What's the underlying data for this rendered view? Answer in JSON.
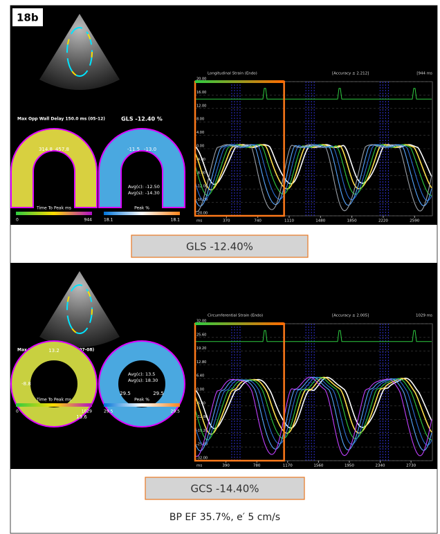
{
  "figure_label": "18b",
  "panels": [
    {
      "left_title": "Max Opp Wall Delay 150.0 ms (05-12)",
      "right_title": "GLS -12.40 %",
      "left_values": [
        "314.8",
        "457.8"
      ],
      "right_values": [
        "-11.5",
        "-13.0"
      ],
      "averages": [
        "Avg(c): -12.50",
        "Avg(s): -14.30"
      ],
      "left_scale": {
        "title": "Time To Peak ms",
        "min": "0",
        "max": "944"
      },
      "right_scale": {
        "title": "Peak %",
        "min": "18.1",
        "max": "18.1"
      },
      "graph": {
        "title": "Longitudinal Strain (Endo)",
        "accuracy": "[Accuracy ± 2.212]",
        "duration": "[944 ms",
        "x_unit": "ms",
        "ylim": [
          -20,
          20
        ],
        "xlim": [
          0,
          2800
        ],
        "yticks": [
          {
            "value": 20,
            "label": "20.00"
          },
          {
            "value": 16,
            "label": "16.00"
          },
          {
            "value": 12,
            "label": "12.00"
          },
          {
            "value": 8,
            "label": "8.00"
          },
          {
            "value": 4,
            "label": "4.00"
          },
          {
            "value": 0,
            "label": "0.00"
          },
          {
            "value": -4,
            "label": "-4.00"
          },
          {
            "value": -8,
            "label": "-8.00"
          },
          {
            "value": -12,
            "label": "-12.00"
          },
          {
            "value": -16,
            "label": "-16.00"
          },
          {
            "value": -20,
            "label": "-20.00"
          }
        ],
        "xticks": [
          370,
          740,
          1110,
          1480,
          1850,
          2220,
          2590
        ]
      },
      "caption": "GLS -12.40%"
    },
    {
      "left_title": "Max Wall Delay 344.0 ms (07-08)",
      "right_title": "GCS -14.40 %",
      "left_values": [
        "13.2",
        "-8.8",
        "13.6"
      ],
      "right_values": [
        "29.5",
        "29.5"
      ],
      "averages": [
        "Avg(c): 13.5",
        "Avg(s): 18.30"
      ],
      "left_scale": {
        "title": "Time To Peak ms",
        "min": "0",
        "max": "1029"
      },
      "right_scale": {
        "title": "Peak %",
        "min": "29.5",
        "max": "29.5"
      },
      "graph": {
        "title": "Circumferential Strain (Endo)",
        "accuracy": "[Accuracy ± 2.005]",
        "duration": "1029 ms",
        "x_unit": "ms",
        "ylim": [
          -32,
          32
        ],
        "xlim": [
          0,
          3000
        ],
        "yticks": [
          {
            "value": 32,
            "label": "32.00"
          },
          {
            "value": 25.6,
            "label": "25.60"
          },
          {
            "value": 19.2,
            "label": "19.20"
          },
          {
            "value": 12.8,
            "label": "12.80"
          },
          {
            "value": 6.4,
            "label": "6.40"
          },
          {
            "value": 0,
            "label": "0.00"
          },
          {
            "value": -6.4,
            "label": "-6.40"
          },
          {
            "value": -12.8,
            "label": "-12.80"
          },
          {
            "value": -19.2,
            "label": "-19.20"
          },
          {
            "value": -25.6,
            "label": "-25.60"
          },
          {
            "value": -32,
            "label": "-32.00"
          }
        ],
        "xticks": [
          390,
          780,
          1170,
          1560,
          1950,
          2340,
          2730
        ]
      },
      "caption": "GCS -14.40%"
    }
  ],
  "footer": "BP EF 35.7%, e′ 5 cm/s"
}
